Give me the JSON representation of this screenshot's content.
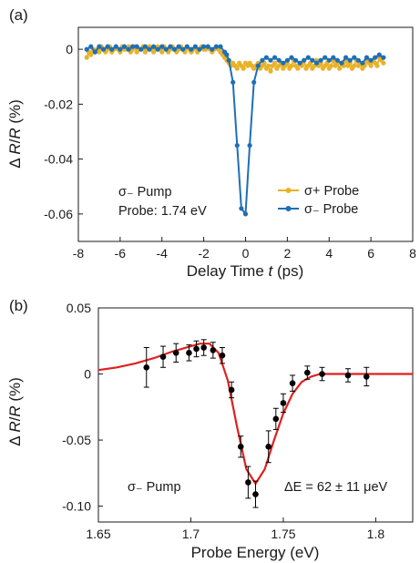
{
  "chart_data": [
    {
      "type": "line",
      "panel_label": "(a)",
      "xlabel": "Delay Time t (ps)",
      "ylabel": "Δ R/R (%)",
      "xlim": [
        -8,
        8
      ],
      "ylim": [
        -0.07,
        0.008
      ],
      "xticks": [
        -8,
        -6,
        -4,
        -2,
        0,
        2,
        4,
        6,
        8
      ],
      "xtick_labels": [
        "-8",
        "-6",
        "-4",
        "-2",
        "0",
        "2",
        "4",
        "6",
        "8"
      ],
      "yticks": [
        0,
        -0.02,
        -0.04,
        -0.06
      ],
      "ytick_labels": [
        "0",
        "-0.02",
        "-0.04",
        "-0.06"
      ],
      "grid": false,
      "legend_position": "bottom-right",
      "annotations": [
        "σ₋ Pump",
        "Probe: 1.74 eV"
      ],
      "series": [
        {
          "name": "σ+ Probe",
          "color": "#E8B22A",
          "x": [
            -7.6,
            -7.5,
            -7.4,
            -7.3,
            -7.2,
            -7.1,
            -7.0,
            -6.9,
            -6.8,
            -6.7,
            -6.6,
            -6.5,
            -6.4,
            -6.3,
            -6.2,
            -6.1,
            -6.0,
            -5.9,
            -5.8,
            -5.7,
            -5.6,
            -5.5,
            -5.4,
            -5.3,
            -5.2,
            -5.1,
            -5.0,
            -4.9,
            -4.8,
            -4.7,
            -4.6,
            -4.5,
            -4.4,
            -4.3,
            -4.2,
            -4.1,
            -4.0,
            -3.9,
            -3.8,
            -3.7,
            -3.6,
            -3.5,
            -3.4,
            -3.3,
            -3.2,
            -3.1,
            -3.0,
            -2.9,
            -2.8,
            -2.7,
            -2.6,
            -2.5,
            -2.4,
            -2.3,
            -2.2,
            -2.1,
            -2.0,
            -1.9,
            -1.8,
            -1.7,
            -1.6,
            -1.5,
            -1.4,
            -1.3,
            -1.2,
            -1.1,
            -1.0,
            -0.9,
            -0.8,
            -0.7,
            -0.6,
            -0.5,
            -0.4,
            -0.3,
            -0.2,
            -0.1,
            0.0,
            0.1,
            0.2,
            0.3,
            0.4,
            0.5,
            0.6,
            0.7,
            0.8,
            0.9,
            1.0,
            1.1,
            1.2,
            1.3,
            1.4,
            1.5,
            1.6,
            1.7,
            1.8,
            1.9,
            2.0,
            2.1,
            2.2,
            2.3,
            2.4,
            2.5,
            2.6,
            2.7,
            2.8,
            2.9,
            3.0,
            3.1,
            3.2,
            3.3,
            3.4,
            3.5,
            3.6,
            3.7,
            3.8,
            3.9,
            4.0,
            4.1,
            4.2,
            4.3,
            4.4,
            4.5,
            4.6,
            4.7,
            4.8,
            4.9,
            5.0,
            5.1,
            5.2,
            5.3,
            5.4,
            5.5,
            5.6,
            5.7,
            5.8,
            5.9,
            6.0,
            6.1,
            6.2,
            6.3,
            6.4,
            6.5,
            6.6
          ],
          "y": [
            -0.003,
            -0.001,
            -0.002,
            0.0,
            -0.001,
            0.0,
            -0.001,
            0.001,
            0.0,
            -0.001,
            0.0,
            0.001,
            -0.001,
            0.0,
            0.001,
            0.0,
            -0.001,
            0.001,
            0.0,
            0.0,
            0.001,
            -0.001,
            0.0,
            0.001,
            -0.001,
            0.0,
            0.0,
            0.001,
            -0.001,
            0.0,
            0.001,
            0.0,
            -0.001,
            0.0,
            0.001,
            0.0,
            -0.001,
            0.001,
            0.0,
            -0.001,
            0.0,
            0.001,
            0.0,
            -0.001,
            0.0,
            0.001,
            0.0,
            -0.001,
            0.001,
            0.0,
            -0.001,
            0.0,
            0.001,
            -0.001,
            0.0,
            0.001,
            0.0,
            0.0,
            0.001,
            0.0,
            -0.001,
            0.0,
            0.001,
            0.0,
            -0.001,
            -0.002,
            -0.003,
            -0.004,
            -0.005,
            -0.006,
            -0.005,
            -0.006,
            -0.007,
            -0.005,
            -0.006,
            -0.007,
            -0.005,
            -0.006,
            -0.005,
            -0.006,
            -0.007,
            -0.006,
            -0.005,
            -0.007,
            -0.006,
            -0.005,
            -0.007,
            -0.006,
            -0.008,
            -0.006,
            -0.005,
            -0.007,
            -0.006,
            -0.005,
            -0.007,
            -0.006,
            -0.005,
            -0.007,
            -0.006,
            -0.004,
            -0.006,
            -0.007,
            -0.005,
            -0.006,
            -0.004,
            -0.007,
            -0.006,
            -0.005,
            -0.007,
            -0.006,
            -0.004,
            -0.006,
            -0.005,
            -0.007,
            -0.006,
            -0.005,
            -0.007,
            -0.006,
            -0.004,
            -0.006,
            -0.005,
            -0.007,
            -0.005,
            -0.006,
            -0.004,
            -0.006,
            -0.005,
            -0.007,
            -0.006,
            -0.004,
            -0.006,
            -0.005,
            -0.007,
            -0.006,
            -0.004,
            -0.005,
            -0.006,
            -0.004,
            -0.005,
            -0.006,
            -0.003,
            -0.004,
            -0.005
          ]
        },
        {
          "name": "σ₋ Probe",
          "color": "#1F6FB5",
          "x": [
            -7.6,
            -7.4,
            -7.2,
            -7.0,
            -6.8,
            -6.6,
            -6.4,
            -6.2,
            -6.0,
            -5.8,
            -5.6,
            -5.4,
            -5.2,
            -5.0,
            -4.8,
            -4.6,
            -4.4,
            -4.2,
            -4.0,
            -3.8,
            -3.6,
            -3.4,
            -3.2,
            -3.0,
            -2.8,
            -2.6,
            -2.4,
            -2.2,
            -2.0,
            -1.8,
            -1.6,
            -1.4,
            -1.2,
            -1.0,
            -0.9,
            -0.8,
            -0.6,
            -0.4,
            -0.2,
            0.0,
            0.2,
            0.4,
            0.6,
            0.8,
            1.0,
            1.2,
            1.4,
            1.6,
            1.8,
            2.0,
            2.2,
            2.4,
            2.6,
            2.8,
            3.0,
            3.2,
            3.4,
            3.6,
            3.8,
            4.0,
            4.2,
            4.4,
            4.6,
            4.8,
            5.0,
            5.2,
            5.4,
            5.6,
            5.8,
            6.0,
            6.2,
            6.4,
            6.6
          ],
          "y": [
            0.0,
            0.001,
            -0.001,
            0.001,
            0.0,
            0.001,
            0.0,
            0.001,
            0.0,
            0.001,
            0.0,
            0.001,
            0.001,
            0.0,
            0.001,
            0.0,
            0.001,
            0.0,
            0.001,
            0.0,
            0.001,
            0.0,
            0.001,
            0.0,
            0.001,
            0.0,
            0.001,
            0.0,
            0.001,
            0.001,
            0.0,
            0.001,
            0.001,
            -0.001,
            -0.002,
            -0.004,
            -0.012,
            -0.035,
            -0.058,
            -0.06,
            -0.035,
            -0.012,
            -0.006,
            -0.004,
            -0.003,
            -0.004,
            -0.003,
            -0.004,
            -0.005,
            -0.004,
            -0.003,
            -0.004,
            -0.005,
            -0.004,
            -0.003,
            -0.004,
            -0.005,
            -0.004,
            -0.003,
            -0.004,
            -0.003,
            -0.004,
            -0.005,
            -0.003,
            -0.004,
            -0.003,
            -0.004,
            -0.005,
            -0.003,
            -0.004,
            -0.003,
            -0.002,
            -0.003
          ]
        }
      ]
    },
    {
      "type": "scatter",
      "panel_label": "(b)",
      "xlabel": "Probe Energy (eV)",
      "ylabel": "Δ R/R (%)",
      "xlim": [
        1.65,
        1.82
      ],
      "ylim": [
        -0.112,
        0.05
      ],
      "xticks": [
        1.65,
        1.7,
        1.75,
        1.8
      ],
      "xtick_labels": [
        "1.65",
        "1.7",
        "1.75",
        "1.8"
      ],
      "yticks": [
        0.05,
        0,
        -0.05,
        -0.1
      ],
      "ytick_labels": [
        "0.05",
        "0",
        "-0.05",
        "-0.10"
      ],
      "grid": false,
      "annotations": [
        "σ₋ Pump",
        "ΔE = 62 ± 11 μeV"
      ],
      "series": [
        {
          "name": "",
          "color": "#000000",
          "x": [
            1.676,
            1.685,
            1.692,
            1.699,
            1.703,
            1.707,
            1.712,
            1.717,
            1.722,
            1.727,
            1.731,
            1.735,
            1.742,
            1.746,
            1.75,
            1.755,
            1.763,
            1.771,
            1.785,
            1.795
          ],
          "y": [
            0.005,
            0.013,
            0.016,
            0.016,
            0.019,
            0.02,
            0.018,
            0.014,
            -0.012,
            -0.055,
            -0.082,
            -0.091,
            -0.055,
            -0.034,
            -0.022,
            -0.007,
            0.001,
            0.0,
            -0.001,
            -0.002
          ],
          "err": [
            0.015,
            0.008,
            0.007,
            0.006,
            0.006,
            0.006,
            0.006,
            0.006,
            0.006,
            0.008,
            0.012,
            0.01,
            0.012,
            0.008,
            0.007,
            0.006,
            0.005,
            0.005,
            0.005,
            0.007
          ]
        },
        {
          "name": "",
          "type": "line",
          "color": "#E02020",
          "x": [
            1.65,
            1.66,
            1.67,
            1.68,
            1.69,
            1.7,
            1.705,
            1.71,
            1.715,
            1.72,
            1.725,
            1.73,
            1.735,
            1.74,
            1.745,
            1.75,
            1.755,
            1.76,
            1.765,
            1.77,
            1.78,
            1.79,
            1.8,
            1.81,
            1.82
          ],
          "y": [
            0.003,
            0.005,
            0.008,
            0.012,
            0.017,
            0.021,
            0.023,
            0.023,
            0.016,
            -0.005,
            -0.04,
            -0.072,
            -0.083,
            -0.072,
            -0.05,
            -0.03,
            -0.015,
            -0.006,
            -0.002,
            0.0,
            0.0,
            0.0,
            0.0,
            0.0,
            0.0
          ]
        }
      ]
    }
  ]
}
